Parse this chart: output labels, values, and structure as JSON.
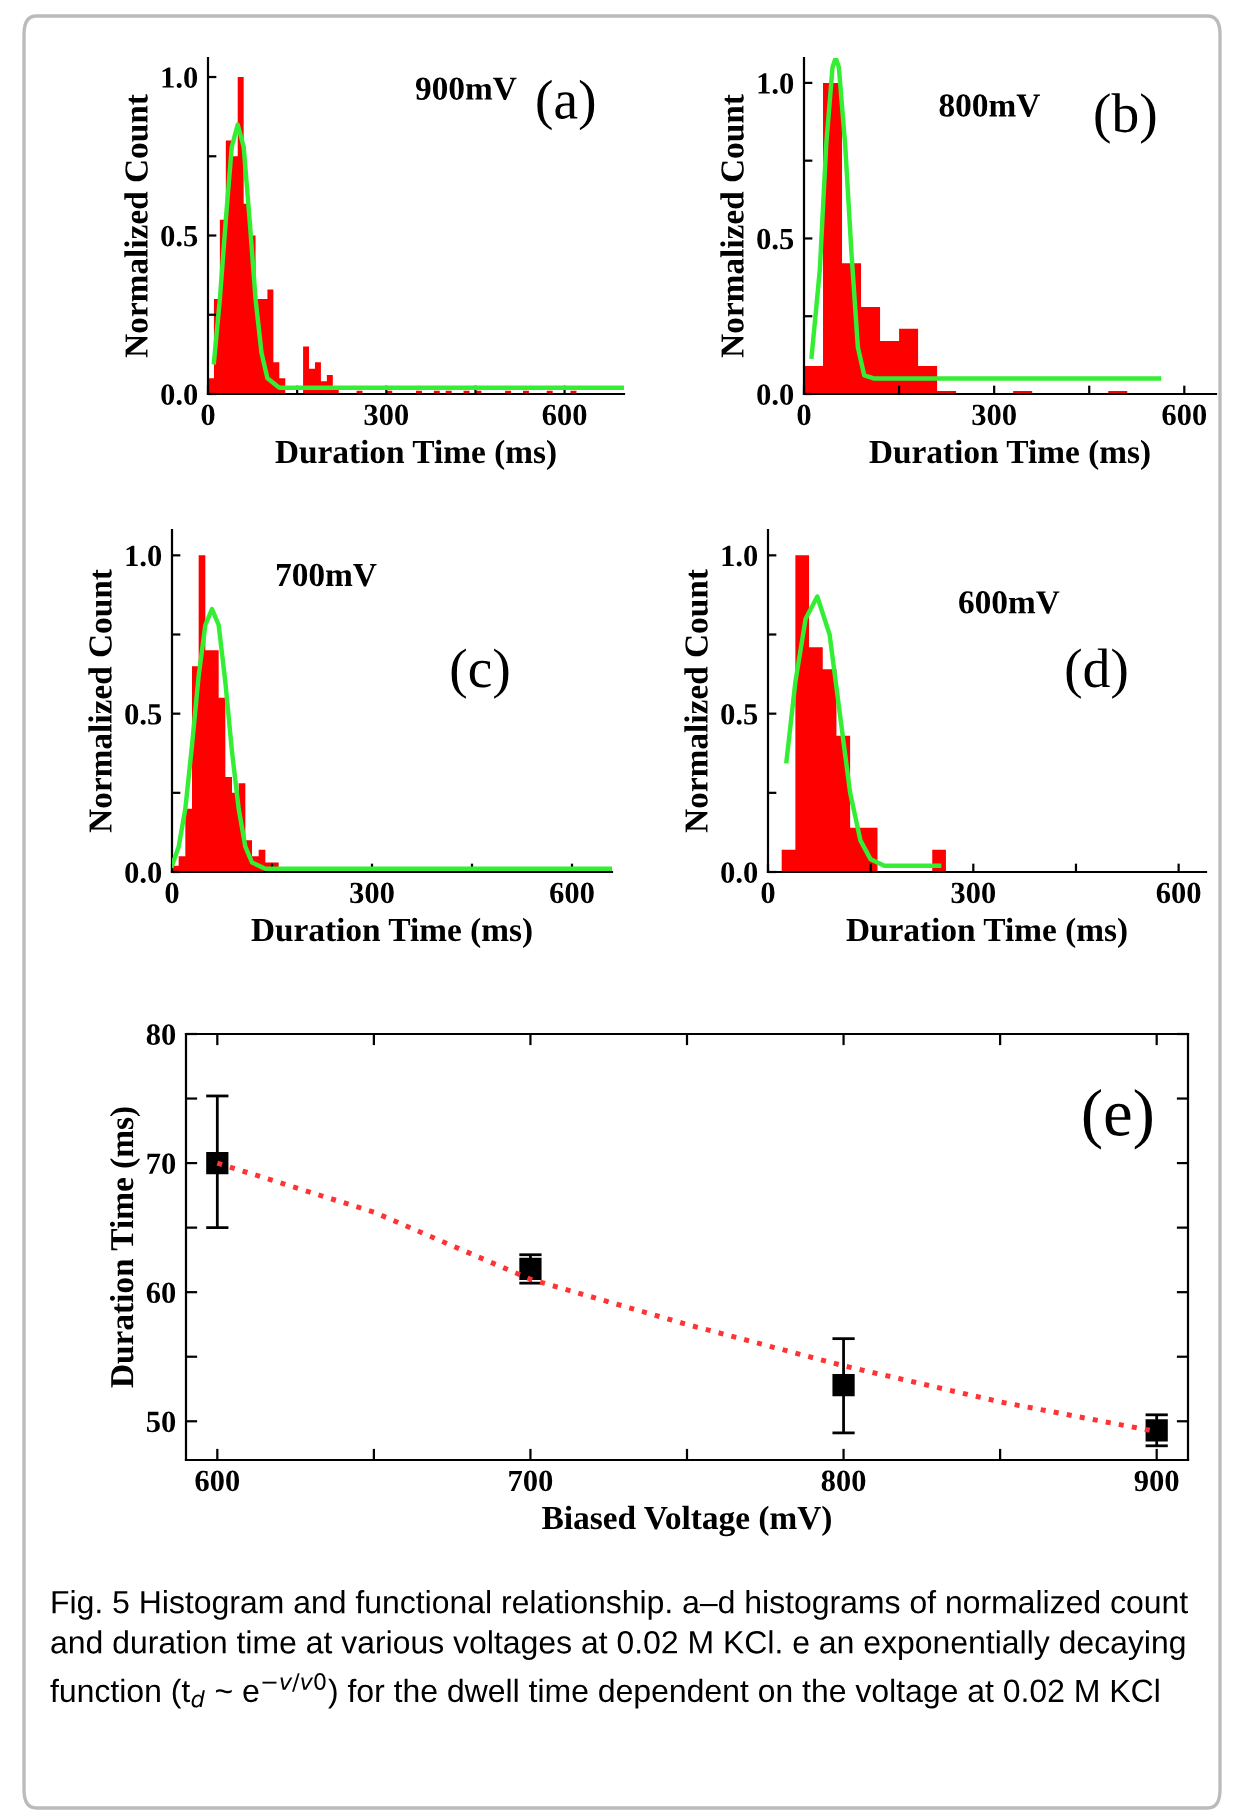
{
  "chart_data": [
    {
      "type": "histogram",
      "xlabel": "Duration Time (ms)",
      "ylabel": "Normalized Count",
      "annotations": [
        "900mV",
        "(a)"
      ],
      "color": "#ff0000",
      "bins": [
        0,
        10,
        20,
        30,
        40,
        50,
        60,
        70,
        80,
        90,
        100,
        110,
        120,
        130,
        140,
        150,
        160,
        170,
        180,
        190,
        200,
        210,
        220,
        230,
        240,
        250,
        260,
        270,
        280,
        290,
        300,
        310,
        320,
        330,
        340,
        350,
        360,
        370,
        380,
        390,
        400,
        410,
        420,
        430,
        440,
        450,
        460,
        470,
        480,
        490,
        500,
        510,
        520,
        530,
        540,
        550,
        560,
        570,
        580,
        590,
        600,
        610,
        620
      ],
      "values": [
        0.05,
        0.3,
        0.55,
        0.8,
        0.75,
        1.0,
        0.6,
        0.5,
        0.3,
        0.3,
        0.33,
        0.1,
        0.05,
        0,
        0,
        0,
        0.15,
        0.08,
        0.1,
        0.04,
        0.06,
        0.02,
        0,
        0,
        0,
        0.01,
        0,
        0,
        0,
        0,
        0.01,
        0,
        0,
        0,
        0,
        0.01,
        0,
        0,
        0.01,
        0,
        0.01,
        0,
        0,
        0.01,
        0,
        0.01,
        0,
        0,
        0,
        0,
        0.01,
        0,
        0,
        0.01,
        0,
        0,
        0,
        0.01,
        0,
        0,
        0,
        0.01
      ],
      "series": [
        {
          "type": "line",
          "color": "#33ee33",
          "x": [
            10,
            20,
            30,
            40,
            50,
            60,
            70,
            80,
            90,
            100,
            120,
            700
          ],
          "values": [
            0.1,
            0.3,
            0.55,
            0.78,
            0.85,
            0.78,
            0.55,
            0.3,
            0.13,
            0.05,
            0.02,
            0.02
          ]
        }
      ],
      "xlim": [
        0,
        700
      ],
      "xticks": [
        0,
        {
          "value": 150,
          "label": null
        },
        300,
        {
          "value": 450,
          "label": null
        },
        600
      ],
      "ylim": [
        0,
        1.06
      ],
      "yticks": [
        {
          "value": 0,
          "label": "0.0"
        },
        {
          "value": 0.25,
          "label": null
        },
        0.5,
        {
          "value": 0.75,
          "label": null
        },
        {
          "value": 1,
          "label": "1.0"
        }
      ]
    },
    {
      "type": "histogram",
      "xlabel": "Duration Time (ms)",
      "ylabel": "Normalized Count",
      "annotations": [
        "800mV",
        "(b)"
      ],
      "color": "#ff0000",
      "bins": [
        0,
        30,
        60,
        90,
        120,
        150,
        180,
        210,
        240,
        270,
        300,
        330,
        360,
        390,
        420,
        450,
        480,
        510
      ],
      "values": [
        0.09,
        1.0,
        0.42,
        0.28,
        0.17,
        0.21,
        0.09,
        0.01,
        0,
        0,
        0,
        0.01,
        0,
        0,
        0,
        0,
        0.01
      ],
      "series": [
        {
          "type": "line",
          "color": "#33ee33",
          "x": [
            12,
            25,
            35,
            45,
            50,
            55,
            65,
            75,
            85,
            95,
            110,
            560
          ],
          "values": [
            0.12,
            0.4,
            0.8,
            1.05,
            1.08,
            1.05,
            0.8,
            0.45,
            0.15,
            0.06,
            0.05,
            0.05
          ]
        }
      ],
      "xlim": [
        0,
        650
      ],
      "xticks": [
        0,
        {
          "value": 150,
          "label": null
        },
        300,
        {
          "value": 450,
          "label": null
        },
        600
      ],
      "ylim": [
        0,
        1.08
      ],
      "yticks": [
        {
          "value": 0,
          "label": "0.0"
        },
        {
          "value": 0.25,
          "label": null
        },
        0.5,
        {
          "value": 0.75,
          "label": null
        },
        {
          "value": 1,
          "label": "1.0"
        }
      ]
    },
    {
      "type": "histogram",
      "xlabel": "Duration Time (ms)",
      "ylabel": "Normalized Count",
      "annotations": [
        "700mV",
        "(c)"
      ],
      "color": "#ff0000",
      "bins": [
        0,
        10,
        20,
        30,
        40,
        50,
        60,
        70,
        80,
        90,
        100,
        110,
        120,
        130,
        140,
        150,
        160,
        170,
        180,
        190,
        200,
        210,
        220,
        230,
        240,
        250,
        260,
        270,
        280,
        290,
        300,
        310,
        320,
        330,
        340,
        350,
        360,
        370,
        380,
        390,
        400,
        410,
        420,
        430,
        440,
        450,
        460,
        470,
        480,
        490,
        500,
        510,
        520,
        530,
        540,
        550,
        560,
        570,
        580,
        590,
        600,
        610
      ],
      "values": [
        0.02,
        0.05,
        0.2,
        0.65,
        1.0,
        0.7,
        0.7,
        0.55,
        0.3,
        0.25,
        0.28,
        0.1,
        0.05,
        0.07,
        0.03,
        0.03,
        0,
        0,
        0.015,
        0,
        0,
        0,
        0,
        0.015,
        0,
        0,
        0,
        0,
        0,
        0,
        0,
        0,
        0,
        0,
        0,
        0,
        0.015,
        0,
        0,
        0,
        0,
        0,
        0,
        0,
        0,
        0,
        0,
        0,
        0,
        0,
        0,
        0,
        0,
        0,
        0,
        0,
        0,
        0,
        0,
        0,
        0.015
      ],
      "series": [
        {
          "type": "line",
          "color": "#33ee33",
          "x": [
            0,
            10,
            20,
            30,
            40,
            50,
            60,
            70,
            80,
            90,
            100,
            110,
            120,
            140,
            660
          ],
          "values": [
            0.02,
            0.08,
            0.2,
            0.4,
            0.62,
            0.78,
            0.83,
            0.78,
            0.6,
            0.38,
            0.2,
            0.08,
            0.03,
            0.01,
            0.01
          ]
        }
      ],
      "xlim": [
        0,
        660
      ],
      "xticks": [
        0,
        {
          "value": 150,
          "label": null
        },
        300,
        {
          "value": 450,
          "label": null
        },
        600
      ],
      "ylim": [
        0,
        1.08
      ],
      "yticks": [
        {
          "value": 0,
          "label": "0.0"
        },
        {
          "value": 0.25,
          "label": null
        },
        0.5,
        {
          "value": 0.75,
          "label": null
        },
        {
          "value": 1,
          "label": "1.0"
        }
      ]
    },
    {
      "type": "histogram",
      "xlabel": "Duration Time (ms)",
      "ylabel": "Normalized Count",
      "annotations": [
        "600mV",
        "(d)"
      ],
      "color": "#ff0000",
      "bins": [
        20,
        40,
        60,
        80,
        100,
        120,
        140,
        160,
        180,
        200,
        220,
        240,
        260
      ],
      "values": [
        0.07,
        1.0,
        0.71,
        0.64,
        0.43,
        0.14,
        0.14,
        0,
        0,
        0,
        0,
        0.07
      ],
      "series": [
        {
          "type": "line",
          "color": "#33ee33",
          "x": [
            27,
            40,
            55,
            72,
            90,
            105,
            120,
            135,
            150,
            170,
            250
          ],
          "values": [
            0.35,
            0.6,
            0.8,
            0.87,
            0.75,
            0.5,
            0.25,
            0.1,
            0.04,
            0.02,
            0.02
          ]
        }
      ],
      "xlim": [
        0,
        640
      ],
      "xticks": [
        0,
        {
          "value": 150,
          "label": null
        },
        300,
        {
          "value": 450,
          "label": null
        },
        600
      ],
      "ylim": [
        0,
        1.08
      ],
      "yticks": [
        {
          "value": 0,
          "label": "0.0"
        },
        {
          "value": 0.25,
          "label": null
        },
        0.5,
        {
          "value": 0.75,
          "label": null
        },
        {
          "value": 1,
          "label": "1.0"
        }
      ]
    },
    {
      "type": "scatter",
      "xlabel": "Biased Voltage (mV)",
      "ylabel": "Duration Time (ms)",
      "annotations": [
        "(e)",
        "Fig. 5 Histogram and functional relationship. a–d histograms of normalized count and duration time at various voltages at 0.02 M KCl. e an exponentially decaying function (t$_{d}$ ~ e$^{−v/v0}$) for the dwell time dependent on the voltage at 0.02 M KCl"
      ],
      "series": [
        {
          "type": "scatter",
          "marker": "square",
          "color": "#000000",
          "x": [
            600,
            700,
            800,
            900
          ],
          "values": [
            70.0,
            61.8,
            52.8,
            49.3
          ],
          "errors": [
            [
              65.0,
              75.2
            ],
            [
              60.7,
              62.9
            ],
            [
              49.1,
              56.4
            ],
            [
              48.1,
              50.5
            ]
          ]
        },
        {
          "type": "line",
          "color": "#ff3333",
          "line_style": "dotted",
          "x": [
            600,
            650,
            700,
            750,
            800,
            850,
            900
          ],
          "values": [
            70.0,
            66.2,
            61.0,
            57.5,
            54.3,
            51.5,
            49.2
          ]
        }
      ],
      "xlim": [
        590,
        910
      ],
      "xticks": [
        600,
        {
          "value": 650,
          "label": null
        },
        700,
        {
          "value": 750,
          "label": null
        },
        800,
        {
          "value": 850,
          "label": null
        },
        900
      ],
      "ylim": [
        47,
        80
      ],
      "yticks": [
        50,
        {
          "value": 55,
          "label": null
        },
        60,
        {
          "value": 65,
          "label": null
        },
        70,
        {
          "value": 75,
          "label": null
        },
        80
      ]
    }
  ]
}
